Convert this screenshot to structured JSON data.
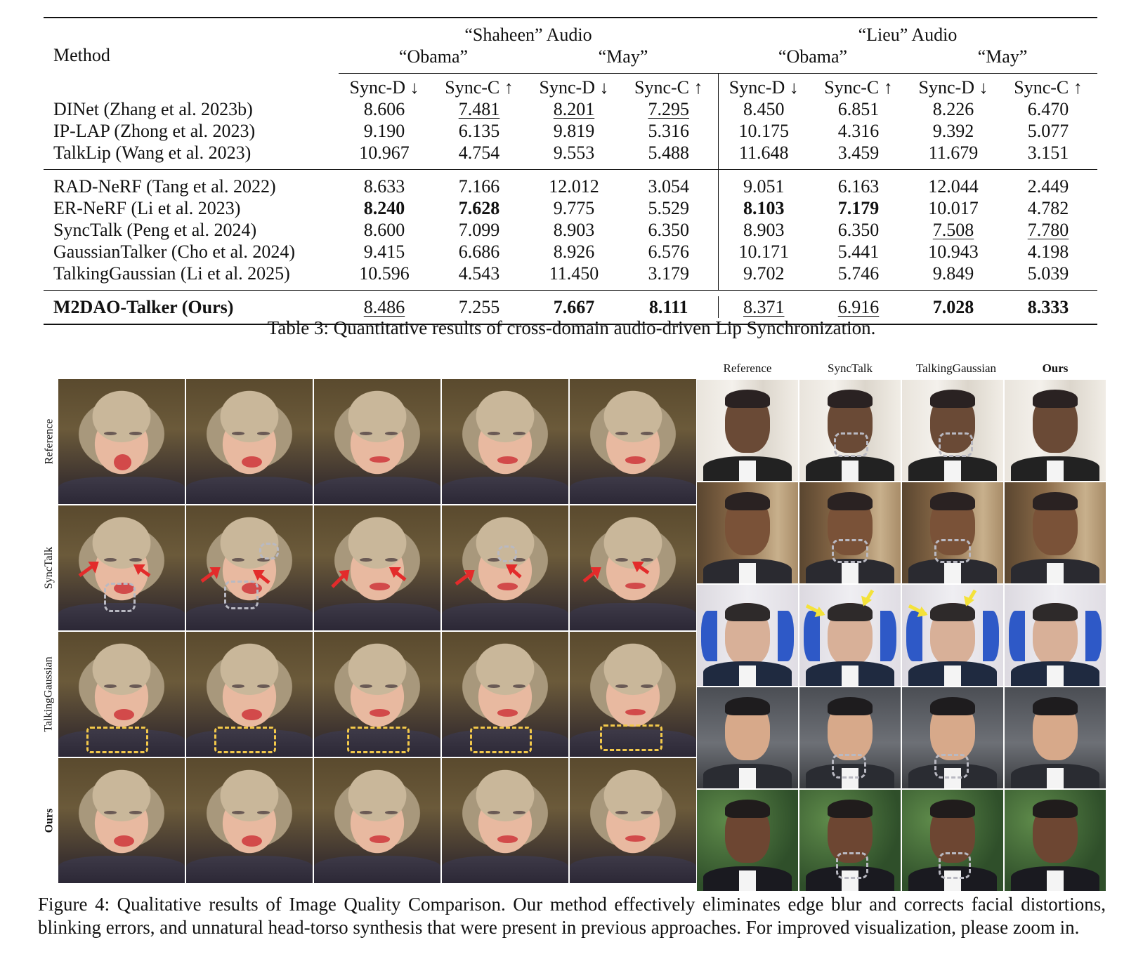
{
  "table": {
    "method_header": "Method",
    "audio_groups": [
      "“Shaheen” Audio",
      "“Lieu” Audio"
    ],
    "subjects": [
      "“Obama”",
      "“May”",
      "“Obama”",
      "“May”"
    ],
    "metrics": [
      "Sync-D ↓",
      "Sync-C ↑",
      "Sync-D ↓",
      "Sync-C ↑",
      "Sync-D ↓",
      "Sync-C ↑",
      "Sync-D ↓",
      "Sync-C ↑"
    ],
    "rows": [
      {
        "method": "DINet (Zhang et al. 2023b)",
        "values": [
          "8.606",
          "7.481",
          "8.201",
          "7.295",
          "8.450",
          "6.851",
          "8.226",
          "6.470"
        ]
      },
      {
        "method": "IP-LAP (Zhong et al. 2023)",
        "values": [
          "9.190",
          "6.135",
          "9.819",
          "5.316",
          "10.175",
          "4.316",
          "9.392",
          "5.077"
        ]
      },
      {
        "method": "TalkLip (Wang et al. 2023)",
        "values": [
          "10.967",
          "4.754",
          "9.553",
          "5.488",
          "11.648",
          "3.459",
          "11.679",
          "3.151"
        ]
      },
      {
        "method": "RAD-NeRF (Tang et al. 2022)",
        "values": [
          "8.633",
          "7.166",
          "12.012",
          "3.054",
          "9.051",
          "6.163",
          "12.044",
          "2.449"
        ]
      },
      {
        "method": "ER-NeRF (Li et al. 2023)",
        "values": [
          "8.240",
          "7.628",
          "9.775",
          "5.529",
          "8.103",
          "7.179",
          "10.017",
          "4.782"
        ]
      },
      {
        "method": "SyncTalk (Peng et al. 2024)",
        "values": [
          "8.600",
          "7.099",
          "8.903",
          "6.350",
          "8.903",
          "6.350",
          "7.508",
          "7.780"
        ]
      },
      {
        "method": "GaussianTalker (Cho et al. 2024)",
        "values": [
          "9.415",
          "6.686",
          "8.926",
          "6.576",
          "10.171",
          "5.441",
          "10.943",
          "4.198"
        ]
      },
      {
        "method": "TalkingGaussian (Li et al. 2025)",
        "values": [
          "10.596",
          "4.543",
          "11.450",
          "3.179",
          "9.702",
          "5.746",
          "9.849",
          "5.039"
        ]
      },
      {
        "method": "M2DAO-Talker (Ours)",
        "values": [
          "8.486",
          "7.255",
          "7.667",
          "8.111",
          "8.371",
          "6.916",
          "7.028",
          "8.333"
        ]
      }
    ],
    "caption": "Table 3: Quantitative results of cross-domain audio-driven Lip Synchronization."
  },
  "figure": {
    "left_row_labels": [
      "Reference",
      "SyncTalk",
      "TalkingGaussian",
      "Ours"
    ],
    "right_col_headers": [
      "Reference",
      "SyncTalk",
      "TalkingGaussian",
      "Ours"
    ],
    "caption": "Figure 4: Qualitative results of Image Quality Comparison. Our method effectively eliminates edge blur and corrects facial distortions, blinking errors, and unnatural head-torso synthesis that were present in previous approaches. For improved visualization, please zoom in."
  }
}
